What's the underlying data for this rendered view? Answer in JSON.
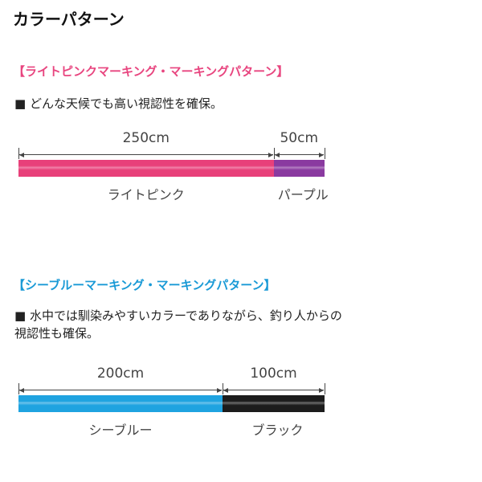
{
  "title": "カラーパターン",
  "patterns": [
    {
      "header": "【ライトピンクマーキング・マーキングパターン】",
      "header_color": "#e8457f",
      "description_lines": [
        "■ どんな天候でも高い視認性を確保。"
      ],
      "segments": [
        {
          "length": "250cm",
          "length_cm": 250,
          "color_name": "ライトピンク",
          "color": "#e8407a"
        },
        {
          "length": "50cm",
          "length_cm": 50,
          "color_name": "パープル",
          "color": "#8a3aa0"
        }
      ]
    },
    {
      "header": "【シーブルーマーキング・マーキングパターン】",
      "header_color": "#1a9ad6",
      "description_lines": [
        "■ 水中では馴染みやすいカラーでありながら、釣り人からの",
        "視認性も確保。"
      ],
      "segments": [
        {
          "length": "200cm",
          "length_cm": 200,
          "color_name": "シーブルー",
          "color": "#1fa3e0"
        },
        {
          "length": "100cm",
          "length_cm": 100,
          "color_name": "ブラック",
          "color": "#1c1c1c"
        }
      ]
    }
  ]
}
